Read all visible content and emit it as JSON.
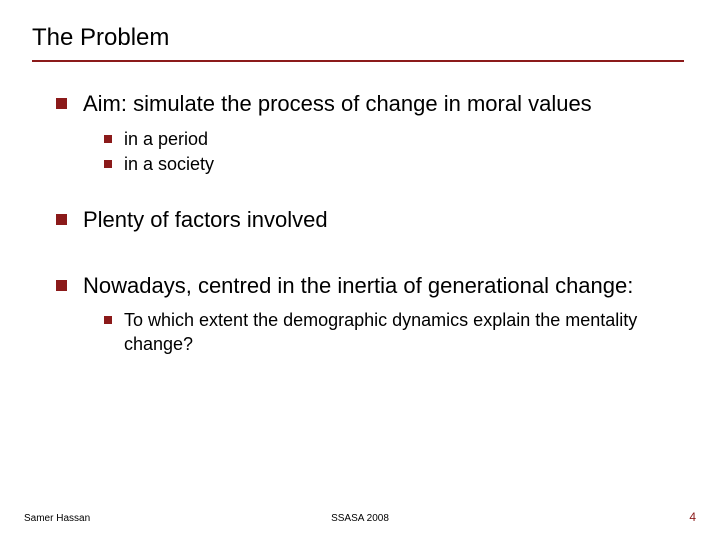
{
  "colors": {
    "accent": "#8b1a1a",
    "text": "#000000",
    "background": "#ffffff"
  },
  "title": "The Problem",
  "bullets": {
    "b1": {
      "text": "Aim: simulate the process of change in moral values",
      "sub": {
        "s1": "in a period",
        "s2": "in a society"
      }
    },
    "b2": {
      "text": "Plenty of factors involved"
    },
    "b3": {
      "text": "Nowadays, centred in the inertia of generational change:",
      "sub": {
        "s1": "To which extent the demographic dynamics explain the mentality change?"
      }
    }
  },
  "footer": {
    "left": "Samer Hassan",
    "center": "SSASA 2008",
    "pageNumber": "4"
  },
  "style": {
    "title_fontsize": 24,
    "l1_fontsize": 22,
    "l2_fontsize": 18,
    "footer_fontsize": 10,
    "bullet_l1_size": 11,
    "bullet_l2_size": 8,
    "rule_thickness": 2
  }
}
